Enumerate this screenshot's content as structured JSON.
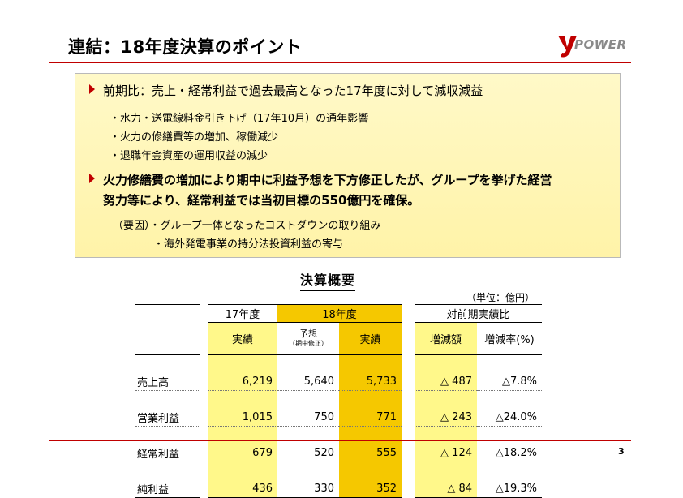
{
  "header": {
    "title": "連結：18年度決算のポイント",
    "logo_text": "POWER"
  },
  "points": {
    "point1": "前期比：売上・経常利益で過去最高となった17年度に対して減収減益",
    "point1_subs": [
      "・水力・送電線料金引き下げ（17年10月）の通年影響",
      "・火力の修繕費等の増加、稼働減少",
      "・退職年金資産の運用収益の減少"
    ],
    "point2_line1": "火力修繕費の増加により期中に利益予想を下方修正したが、グループを挙げた経営",
    "point2_line2": "努力等により、経常利益では当初目標の550億円を確保。",
    "factor1": "（要因）・グループ一体となったコストダウンの取り組み",
    "factor2": "・海外発電事業の持分法投資利益の寄与"
  },
  "summary": {
    "title": "決算概要",
    "unit": "（単位：億円）",
    "group_headers": {
      "fy17": "17年度",
      "fy18": "18年度",
      "yoy": "対前期実績比"
    },
    "col_headers": {
      "fy17_actual": "実績",
      "fy18_forecast": "予想",
      "fy18_forecast_note": "（期中修正）",
      "fy18_actual": "実績",
      "change": "増減額",
      "change_rate": "増減率(%)"
    },
    "rows": [
      {
        "label": "売上高",
        "fy17": "6,219",
        "forecast": "5,640",
        "fy18": "5,733",
        "change": "△ 487",
        "rate": "△7.8%"
      },
      {
        "label": "営業利益",
        "fy17": "1,015",
        "forecast": "750",
        "fy18": "771",
        "change": "△ 243",
        "rate": "△24.0%"
      },
      {
        "label": "経常利益",
        "fy17": "679",
        "forecast": "520",
        "fy18": "555",
        "change": "△ 124",
        "rate": "△18.2%"
      },
      {
        "label": "純利益",
        "fy17": "436",
        "forecast": "330",
        "fy18": "352",
        "change": "△ 84",
        "rate": "△19.3%"
      }
    ]
  },
  "footer": {
    "page_number": "3"
  },
  "colors": {
    "accent_red": "#c00000",
    "highlight_yellow": "#fff88a",
    "highlight_gold": "#f5c800",
    "box_bg": "#fff6b8"
  }
}
